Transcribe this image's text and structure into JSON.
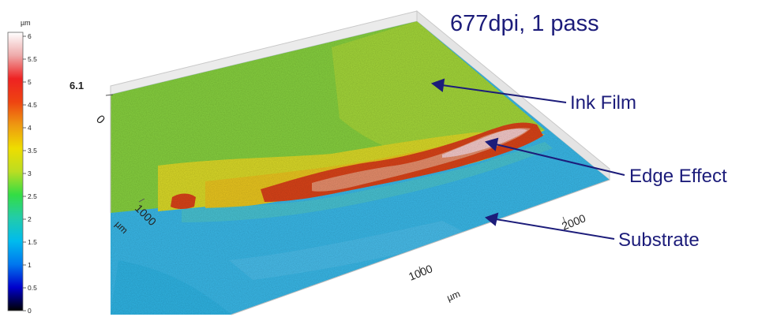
{
  "title": "677dpi, 1 pass",
  "colorbar": {
    "unit": "µm",
    "ticks": [
      "6",
      "5.5",
      "5",
      "4.5",
      "4",
      "3.5",
      "3",
      "2.5",
      "2",
      "1.5",
      "1",
      "0.5",
      "0"
    ],
    "min": 0,
    "max": 6,
    "colors": [
      "#000000",
      "#0000cc",
      "#0077ee",
      "#00bbee",
      "#22ccaa",
      "#33dd44",
      "#bbdd22",
      "#eedd00",
      "#ee9911",
      "#ee4411",
      "#ee2222",
      "#eeaaaa",
      "#ffffff"
    ]
  },
  "plot": {
    "z_max_label": "6.1",
    "z_zero_label": "0",
    "y_axis_tick": "1000",
    "y_axis_unit": "µm",
    "x_axis_ticks": [
      "1000",
      "2000"
    ],
    "x_axis_unit": "µm"
  },
  "annotations": {
    "ink_film": "Ink Film",
    "edge_effect": "Edge Effect",
    "substrate": "Substrate"
  },
  "colors": {
    "annotation": "#1c1c7a",
    "ink_film": "#9fd43a",
    "substrate": "#3bb7e6",
    "edge": "#d8451f",
    "edge_peak": "#f3c8c8"
  }
}
